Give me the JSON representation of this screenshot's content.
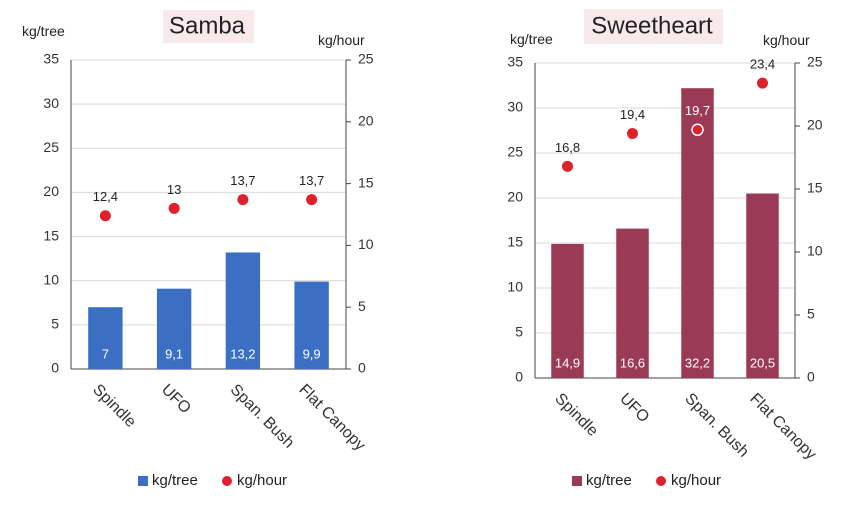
{
  "chart_data": [
    {
      "type": "bar",
      "title": "Samba",
      "categories": [
        "Spindle",
        "UFO",
        "Span. Bush",
        "Flat Canopy"
      ],
      "y_left_label": "kg/tree",
      "y_right_label": "kg/hour",
      "y_left_lim": [
        0,
        35
      ],
      "y_left_ticks": [
        "0",
        "5",
        "10",
        "15",
        "20",
        "25",
        "30",
        "35"
      ],
      "y_right_lim": [
        0,
        25
      ],
      "y_right_ticks": [
        "0",
        "5",
        "10",
        "15",
        "20",
        "25"
      ],
      "bar_color": "#3a6fc4",
      "dot_color": "#e0202a",
      "series": [
        {
          "name": "kg/tree",
          "axis": "left",
          "kind": "bar",
          "values": [
            7,
            9.1,
            13.2,
            9.9
          ],
          "labels": [
            "7",
            "9,1",
            "13,2",
            "9,9"
          ]
        },
        {
          "name": "kg/hour",
          "axis": "right",
          "kind": "dot",
          "values": [
            12.4,
            13,
            13.7,
            13.7
          ],
          "labels": [
            "12,4",
            "13",
            "13,7",
            "13,7"
          ]
        }
      ],
      "grid": true,
      "legend_position": "bottom"
    },
    {
      "type": "bar",
      "title": "Sweetheart",
      "categories": [
        "Spindle",
        "UFO",
        "Span. Bush",
        "Flat Canopy"
      ],
      "y_left_label": "kg/tree",
      "y_right_label": "kg/hour",
      "y_left_lim": [
        0,
        35
      ],
      "y_left_ticks": [
        "0",
        "5",
        "10",
        "15",
        "20",
        "25",
        "30",
        "35"
      ],
      "y_right_lim": [
        0,
        25
      ],
      "y_right_ticks": [
        "0",
        "5",
        "10",
        "15",
        "20",
        "25"
      ],
      "bar_color": "#9b3a56",
      "dot_color": "#e0202a",
      "series": [
        {
          "name": "kg/tree",
          "axis": "left",
          "kind": "bar",
          "values": [
            14.9,
            16.6,
            32.2,
            20.5
          ],
          "labels": [
            "14,9",
            "16,6",
            "32,2",
            "20,5"
          ]
        },
        {
          "name": "kg/hour",
          "axis": "right",
          "kind": "dot",
          "values": [
            16.8,
            19.4,
            19.7,
            23.4
          ],
          "labels": [
            "16,8",
            "19,4",
            "19,7",
            "23,4"
          ]
        }
      ],
      "grid": true,
      "legend_position": "bottom"
    }
  ]
}
